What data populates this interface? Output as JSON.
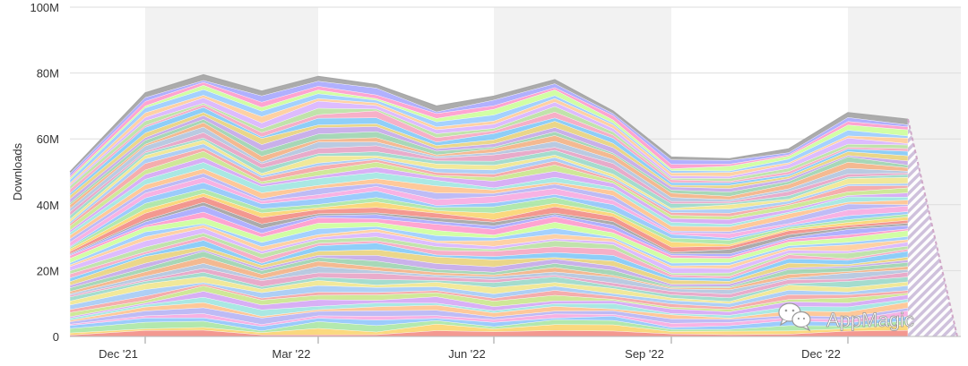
{
  "chart_data": {
    "type": "area",
    "stacked": true,
    "title": "",
    "xlabel": "",
    "ylabel": "Downloads",
    "ylim": [
      0,
      100
    ],
    "y_unit": "M",
    "y_ticks": [
      "0",
      "20M",
      "40M",
      "60M",
      "80M",
      "100M"
    ],
    "x_ticks": [
      "Dec '21",
      "Mar '22",
      "Jun '22",
      "Sep '22",
      "Dec '22"
    ],
    "grid": true,
    "legend": "none",
    "x": [
      "Nov '21",
      "Dec '21",
      "Jan '22",
      "Feb '22",
      "Mar '22",
      "Apr '22",
      "May '22",
      "Jun '22",
      "Jul '22",
      "Aug '22",
      "Sep '22",
      "Oct '22",
      "Nov '22",
      "Dec '22",
      "Jan '23",
      "Feb '23"
    ],
    "total": [
      50,
      74,
      79.5,
      74.5,
      79,
      76.5,
      70,
      73,
      78,
      68.5,
      54.5,
      54,
      57,
      68,
      66,
      0
    ],
    "last_period_partial": true,
    "series_count": 60
  },
  "watermark": {
    "text": "AppMagic",
    "icon": "wechat-logo"
  }
}
